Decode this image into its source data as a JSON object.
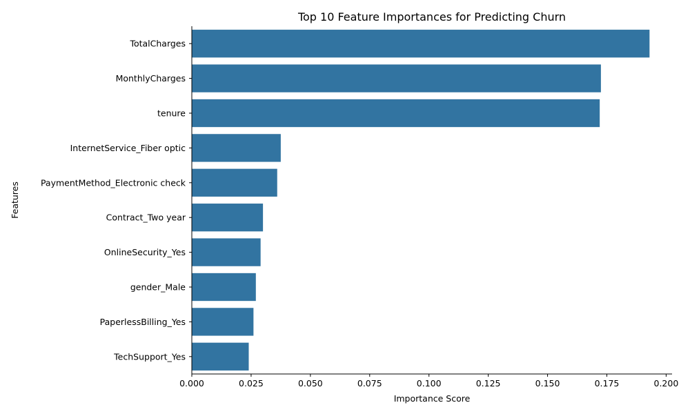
{
  "chart_data": {
    "type": "bar",
    "orientation": "horizontal",
    "title": "Top 10 Feature Importances for Predicting Churn",
    "xlabel": "Importance Score",
    "ylabel": "Features",
    "categories": [
      "TotalCharges",
      "MonthlyCharges",
      "tenure",
      "InternetService_Fiber optic",
      "PaymentMethod_Electronic check",
      "Contract_Two year",
      "OnlineSecurity_Yes",
      "gender_Male",
      "PaperlessBilling_Yes",
      "TechSupport_Yes"
    ],
    "values": [
      0.193,
      0.1725,
      0.172,
      0.0375,
      0.036,
      0.03,
      0.029,
      0.027,
      0.026,
      0.024
    ],
    "xlim": [
      0,
      0.2025
    ],
    "xticks": [
      0.0,
      0.025,
      0.05,
      0.075,
      0.1,
      0.125,
      0.15,
      0.175,
      0.2
    ],
    "xtick_labels": [
      "0.000",
      "0.025",
      "0.050",
      "0.075",
      "0.100",
      "0.125",
      "0.150",
      "0.175",
      "0.200"
    ],
    "grid": false,
    "bar_color": "#3274a1"
  }
}
